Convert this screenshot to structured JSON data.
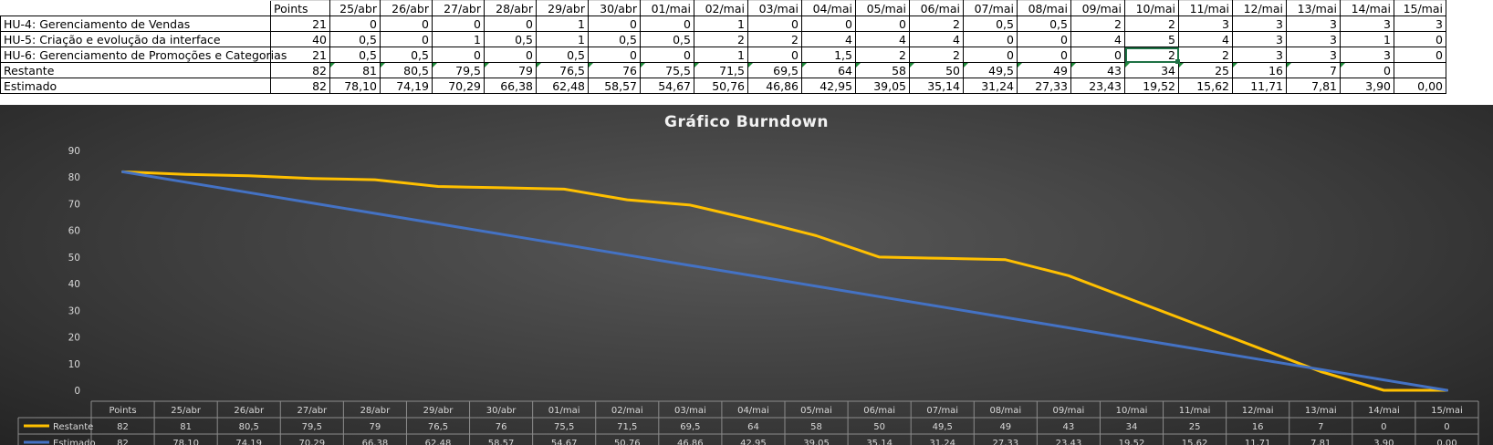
{
  "sheet": {
    "header": [
      "",
      "Points",
      "25/abr",
      "26/abr",
      "27/abr",
      "28/abr",
      "29/abr",
      "30/abr",
      "01/mai",
      "02/mai",
      "03/mai",
      "04/mai",
      "05/mai",
      "06/mai",
      "07/mai",
      "08/mai",
      "09/mai",
      "10/mai",
      "11/mai",
      "12/mai",
      "13/mai",
      "14/mai",
      "15/mai"
    ],
    "rows": [
      [
        "HU-4: Gerenciamento de Vendas",
        "21",
        "0",
        "0",
        "0",
        "0",
        "1",
        "0",
        "0",
        "1",
        "0",
        "0",
        "0",
        "2",
        "0,5",
        "0,5",
        "2",
        "2",
        "3",
        "3",
        "3",
        "3",
        "3"
      ],
      [
        "HU-5: Criação e evolução da interface",
        "40",
        "0,5",
        "0",
        "1",
        "0,5",
        "1",
        "0,5",
        "0,5",
        "2",
        "2",
        "4",
        "4",
        "4",
        "0",
        "0",
        "4",
        "5",
        "4",
        "3",
        "3",
        "1",
        "0"
      ],
      [
        "HU-6: Gerenciamento de Promoções e Categorias",
        "21",
        "0,5",
        "0,5",
        "0",
        "0",
        "0,5",
        "0",
        "0",
        "1",
        "0",
        "1,5",
        "2",
        "2",
        "0",
        "0",
        "0",
        "2",
        "2",
        "3",
        "3",
        "3",
        "0"
      ],
      [
        "Restante",
        "82",
        "81",
        "80,5",
        "79,5",
        "79",
        "76,5",
        "76",
        "75,5",
        "71,5",
        "69,5",
        "64",
        "58",
        "50",
        "49,5",
        "49",
        "43",
        "34",
        "25",
        "16",
        "7",
        "0",
        ""
      ],
      [
        "Estimado",
        "82",
        "78,10",
        "74,19",
        "70,29",
        "66,38",
        "62,48",
        "58,57",
        "54,67",
        "50,76",
        "46,86",
        "42,95",
        "39,05",
        "35,14",
        "31,24",
        "27,33",
        "23,43",
        "19,52",
        "15,62",
        "11,71",
        "7,81",
        "3,90",
        "0,00"
      ]
    ]
  },
  "chart_data": {
    "type": "line",
    "title": "Gráfico Burndown",
    "categories": [
      "Points",
      "25/abr",
      "26/abr",
      "27/abr",
      "28/abr",
      "29/abr",
      "30/abr",
      "01/mai",
      "02/mai",
      "03/mai",
      "04/mai",
      "05/mai",
      "06/mai",
      "07/mai",
      "08/mai",
      "09/mai",
      "10/mai",
      "11/mai",
      "12/mai",
      "13/mai",
      "14/mai",
      "15/mai"
    ],
    "ylim": [
      0,
      90
    ],
    "yticks": [
      0,
      10,
      20,
      30,
      40,
      50,
      60,
      70,
      80,
      90
    ],
    "grid": false,
    "legend": "data-table",
    "series": [
      {
        "name": "Restante",
        "color": "#ffc000",
        "values": [
          82,
          81,
          80.5,
          79.5,
          79,
          76.5,
          76,
          75.5,
          71.5,
          69.5,
          64,
          58,
          50,
          49.5,
          49,
          43,
          34,
          25,
          16,
          7,
          0,
          0
        ],
        "labels": [
          "82",
          "81",
          "80,5",
          "79,5",
          "79",
          "76,5",
          "76",
          "75,5",
          "71,5",
          "69,5",
          "64",
          "58",
          "50",
          "49,5",
          "49",
          "43",
          "34",
          "25",
          "16",
          "7",
          "0",
          "0"
        ]
      },
      {
        "name": "Estimado",
        "color": "#4472c4",
        "values": [
          82,
          78.1,
          74.19,
          70.29,
          66.38,
          62.48,
          58.57,
          54.67,
          50.76,
          46.86,
          42.95,
          39.05,
          35.14,
          31.24,
          27.33,
          23.43,
          19.52,
          15.62,
          11.71,
          7.81,
          3.9,
          0.0
        ],
        "labels": [
          "82",
          "78,10",
          "74,19",
          "70,29",
          "66,38",
          "62,48",
          "58,57",
          "54,67",
          "50,76",
          "46,86",
          "42,95",
          "39,05",
          "35,14",
          "31,24",
          "27,33",
          "23,43",
          "19,52",
          "15,62",
          "11,71",
          "7,81",
          "3,90",
          "0,00"
        ]
      }
    ]
  }
}
